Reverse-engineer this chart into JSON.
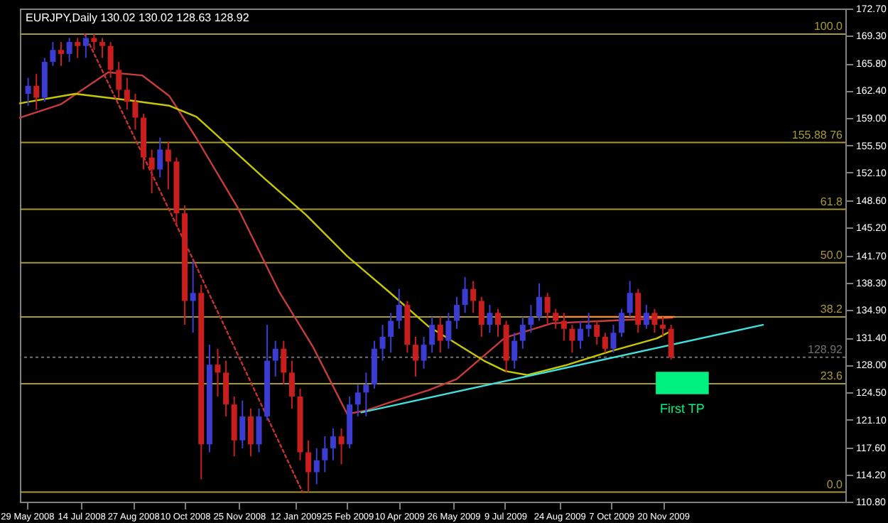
{
  "chart_data": {
    "type": "candlestick",
    "title": "EURJPY,Daily  130.02 130.02 128.63 128.92",
    "x": [
      "2008-05-30",
      "2008-06-06",
      "2008-06-13",
      "2008-06-20",
      "2008-06-27",
      "2008-07-04",
      "2008-07-11",
      "2008-07-18",
      "2008-07-25",
      "2008-08-01",
      "2008-08-08",
      "2008-08-15",
      "2008-08-22",
      "2008-08-29",
      "2008-09-05",
      "2008-09-12",
      "2008-09-19",
      "2008-09-26",
      "2008-10-03",
      "2008-10-10",
      "2008-10-17",
      "2008-10-24",
      "2008-10-31",
      "2008-11-07",
      "2008-11-14",
      "2008-11-21",
      "2008-11-28",
      "2008-12-05",
      "2008-12-12",
      "2008-12-19",
      "2008-12-26",
      "2009-01-02",
      "2009-01-09",
      "2009-01-16",
      "2009-01-23",
      "2009-01-30",
      "2009-02-06",
      "2009-02-13",
      "2009-02-20",
      "2009-02-27",
      "2009-03-06",
      "2009-03-13",
      "2009-03-20",
      "2009-03-27",
      "2009-04-03",
      "2009-04-10",
      "2009-04-17",
      "2009-04-24",
      "2009-05-01",
      "2009-05-08",
      "2009-05-15",
      "2009-05-22",
      "2009-05-29",
      "2009-06-05",
      "2009-06-12",
      "2009-06-19",
      "2009-06-26",
      "2009-07-03",
      "2009-07-10",
      "2009-07-17",
      "2009-07-24",
      "2009-07-31",
      "2009-08-07",
      "2009-08-14",
      "2009-08-21",
      "2009-08-28",
      "2009-09-04",
      "2009-09-11",
      "2009-09-18",
      "2009-09-25",
      "2009-10-02",
      "2009-10-09",
      "2009-10-16",
      "2009-10-23",
      "2009-10-30",
      "2009-11-06",
      "2009-11-13",
      "2009-11-20",
      "2009-11-27"
    ],
    "ohlc": [
      [
        162.0,
        164.0,
        160.5,
        163.0
      ],
      [
        163.0,
        164.5,
        160.0,
        161.5
      ],
      [
        161.5,
        166.5,
        161.0,
        166.0
      ],
      [
        166.0,
        168.5,
        165.5,
        167.5
      ],
      [
        167.5,
        168.5,
        165.5,
        167.0
      ],
      [
        167.0,
        169.0,
        166.0,
        168.5
      ],
      [
        168.5,
        169.0,
        166.5,
        168.0
      ],
      [
        168.0,
        169.3,
        166.5,
        169.0
      ],
      [
        169.0,
        169.5,
        167.5,
        168.5
      ],
      [
        168.5,
        169.0,
        166.5,
        168.0
      ],
      [
        168.0,
        168.5,
        164.0,
        165.0
      ],
      [
        165.0,
        166.0,
        161.5,
        162.5
      ],
      [
        162.5,
        164.0,
        160.0,
        161.0
      ],
      [
        161.0,
        162.0,
        157.5,
        159.0
      ],
      [
        159.0,
        159.5,
        152.5,
        154.0
      ],
      [
        154.0,
        155.0,
        149.5,
        152.5
      ],
      [
        152.5,
        156.5,
        151.5,
        155.0
      ],
      [
        155.0,
        156.0,
        150.0,
        153.5
      ],
      [
        153.5,
        154.0,
        145.5,
        147.0
      ],
      [
        147.0,
        148.0,
        133.0,
        136.0
      ],
      [
        136.0,
        141.0,
        132.0,
        137.0
      ],
      [
        137.0,
        138.0,
        113.6,
        118.0
      ],
      [
        118.0,
        130.5,
        117.0,
        128.0
      ],
      [
        128.0,
        130.0,
        124.0,
        127.0
      ],
      [
        127.0,
        128.5,
        121.5,
        123.0
      ],
      [
        123.0,
        124.0,
        116.5,
        118.5
      ],
      [
        118.5,
        123.5,
        117.5,
        121.5
      ],
      [
        121.5,
        122.5,
        116.5,
        118.0
      ],
      [
        118.0,
        122.5,
        117.0,
        121.5
      ],
      [
        121.5,
        133.0,
        121.0,
        128.5
      ],
      [
        128.5,
        131.0,
        126.5,
        130.0
      ],
      [
        130.0,
        131.0,
        125.5,
        127.0
      ],
      [
        127.0,
        128.5,
        122.5,
        124.0
      ],
      [
        124.0,
        125.0,
        116.0,
        117.0
      ],
      [
        117.0,
        118.5,
        112.0,
        114.5
      ],
      [
        114.5,
        117.5,
        113.0,
        116.0
      ],
      [
        116.0,
        119.0,
        114.5,
        117.5
      ],
      [
        117.5,
        120.0,
        116.0,
        119.0
      ],
      [
        119.0,
        120.0,
        115.5,
        118.0
      ],
      [
        118.0,
        124.0,
        117.5,
        123.0
      ],
      [
        123.0,
        125.5,
        121.5,
        124.5
      ],
      [
        124.5,
        127.0,
        121.5,
        125.5
      ],
      [
        125.5,
        131.0,
        125.0,
        130.0
      ],
      [
        130.0,
        133.0,
        128.5,
        131.5
      ],
      [
        131.5,
        134.5,
        129.5,
        133.5
      ],
      [
        133.5,
        137.5,
        132.5,
        135.5
      ],
      [
        135.5,
        136.0,
        129.5,
        130.5
      ],
      [
        130.5,
        131.5,
        126.5,
        128.5
      ],
      [
        128.5,
        131.5,
        127.5,
        130.5
      ],
      [
        130.5,
        134.0,
        129.5,
        133.0
      ],
      [
        133.0,
        134.0,
        129.5,
        131.0
      ],
      [
        131.0,
        134.5,
        130.0,
        133.5
      ],
      [
        133.5,
        136.5,
        132.5,
        135.5
      ],
      [
        135.5,
        139.0,
        134.5,
        137.5
      ],
      [
        137.5,
        138.5,
        134.5,
        136.0
      ],
      [
        136.0,
        136.5,
        131.5,
        133.0
      ],
      [
        133.0,
        135.5,
        132.0,
        134.5
      ],
      [
        134.5,
        135.0,
        131.5,
        133.0
      ],
      [
        133.0,
        133.5,
        127.0,
        128.5
      ],
      [
        128.5,
        132.0,
        127.5,
        131.0
      ],
      [
        131.0,
        134.0,
        130.0,
        133.0
      ],
      [
        133.0,
        135.5,
        132.0,
        134.0
      ],
      [
        134.0,
        138.2,
        133.5,
        136.5
      ],
      [
        136.5,
        137.0,
        133.0,
        134.5
      ],
      [
        134.5,
        135.0,
        132.5,
        133.5
      ],
      [
        133.5,
        134.5,
        131.0,
        132.5
      ],
      [
        132.5,
        133.0,
        129.5,
        131.0
      ],
      [
        131.0,
        133.5,
        130.0,
        132.5
      ],
      [
        132.5,
        134.5,
        131.5,
        133.0
      ],
      [
        133.0,
        133.5,
        130.5,
        131.5
      ],
      [
        131.5,
        132.0,
        129.5,
        130.0
      ],
      [
        130.0,
        133.0,
        129.5,
        132.0
      ],
      [
        132.0,
        135.0,
        131.5,
        134.5
      ],
      [
        134.5,
        138.5,
        134.0,
        137.0
      ],
      [
        137.0,
        137.5,
        132.0,
        133.0
      ],
      [
        133.0,
        135.5,
        132.5,
        134.5
      ],
      [
        134.5,
        135.0,
        132.0,
        133.0
      ],
      [
        133.0,
        134.0,
        131.5,
        132.5
      ],
      [
        132.5,
        133.0,
        128.63,
        128.92
      ]
    ],
    "colors": [
      "#3c3cd2",
      "#c81e1e",
      "#3c3cd2",
      "#3c3cd2",
      "#c81e1e",
      "#3c3cd2",
      "#c81e1e",
      "#3c3cd2",
      "#c81e1e",
      "#c81e1e",
      "#c81e1e",
      "#c81e1e",
      "#c81e1e",
      "#c81e1e",
      "#c81e1e",
      "#c81e1e",
      "#3c3cd2",
      "#c81e1e",
      "#c81e1e",
      "#c81e1e",
      "#3c3cd2",
      "#c81e1e",
      "#3c3cd2",
      "#c81e1e",
      "#c81e1e",
      "#c81e1e",
      "#3c3cd2",
      "#c81e1e",
      "#3c3cd2",
      "#3c3cd2",
      "#3c3cd2",
      "#c81e1e",
      "#c81e1e",
      "#c81e1e",
      "#c81e1e",
      "#3c3cd2",
      "#3c3cd2",
      "#3c3cd2",
      "#c81e1e",
      "#3c3cd2",
      "#3c3cd2",
      "#3c3cd2",
      "#3c3cd2",
      "#3c3cd2",
      "#3c3cd2",
      "#3c3cd2",
      "#c81e1e",
      "#c81e1e",
      "#3c3cd2",
      "#3c3cd2",
      "#c81e1e",
      "#3c3cd2",
      "#3c3cd2",
      "#3c3cd2",
      "#c81e1e",
      "#c81e1e",
      "#3c3cd2",
      "#c81e1e",
      "#c81e1e",
      "#3c3cd2",
      "#3c3cd2",
      "#3c3cd2",
      "#3c3cd2",
      "#c81e1e",
      "#c81e1e",
      "#c81e1e",
      "#c81e1e",
      "#3c3cd2",
      "#3c3cd2",
      "#c81e1e",
      "#c81e1e",
      "#3c3cd2",
      "#3c3cd2",
      "#3c3cd2",
      "#c81e1e",
      "#3c3cd2",
      "#c81e1e",
      "#c81e1e",
      "#c81e1e"
    ],
    "series": [
      {
        "type": "line",
        "color": "#c83c3c",
        "x": [
          "2008-05-23",
          "2008-06-27",
          "2008-08-06",
          "2008-09-04",
          "2008-09-27",
          "2008-10-20",
          "2008-11-24",
          "2008-12-29",
          "2009-01-27",
          "2009-02-25",
          "2009-03-14",
          "2009-04-01",
          "2009-05-05",
          "2009-05-29",
          "2009-07-09",
          "2009-08-18",
          "2009-10-03",
          "2009-11-28"
        ],
        "values": [
          159.0,
          160.7,
          164.7,
          164.3,
          161.7,
          156.4,
          147.7,
          137.2,
          130.2,
          121.8,
          122.3,
          123.2,
          124.8,
          126.2,
          131.4,
          133.2,
          133.5,
          133.9
        ]
      },
      {
        "type": "line",
        "color": "#c8c800",
        "x": [
          "2008-05-23",
          "2008-07-09",
          "2008-08-23",
          "2008-09-27",
          "2008-10-20",
          "2008-12-18",
          "2009-01-21",
          "2009-02-25",
          "2009-04-01",
          "2009-05-05",
          "2009-06-21",
          "2009-07-09",
          "2009-07-28",
          "2009-08-29",
          "2009-10-07",
          "2009-11-15",
          "2009-11-28"
        ],
        "values": [
          160.8,
          162.0,
          161.2,
          160.5,
          159.1,
          151.2,
          146.8,
          141.6,
          137.2,
          132.8,
          128.5,
          127.2,
          126.7,
          127.9,
          129.7,
          131.3,
          132.3
        ]
      },
      {
        "type": "line",
        "color": "#c83232",
        "line_style": "dotted",
        "x": [
          "2008-07-17",
          "2008-10-18",
          "2009-01-18"
        ],
        "values": [
          169.5,
          140.9,
          112.0
        ]
      },
      {
        "type": "line",
        "color": "#40e0e0",
        "x": [
          "2009-03-09",
          "2010-02-13"
        ],
        "values": [
          122.0,
          133.0
        ]
      },
      {
        "type": "line",
        "color": "#ff8c28",
        "x": [
          "2009-08-14",
          "2009-11-30"
        ],
        "values": [
          134.0,
          134.0
        ]
      },
      {
        "type": "area",
        "color": "#00f080",
        "x": [
          "2009-11-14",
          "2009-12-29"
        ],
        "values": [
          null,
          null
        ],
        "lower": [
          124.3,
          124.3
        ],
        "upper": [
          127.1,
          127.1
        ]
      }
    ],
    "ref_lines": [
      {
        "axis": "y",
        "value": 169.5,
        "color": "#a89838"
      },
      {
        "axis": "y",
        "value": 155.88,
        "color": "#a89838"
      },
      {
        "axis": "y",
        "value": 147.5,
        "color": "#a89838"
      },
      {
        "axis": "y",
        "value": 140.8,
        "color": "#a89838"
      },
      {
        "axis": "y",
        "value": 134.0,
        "color": "#a89838"
      },
      {
        "axis": "y",
        "value": 125.6,
        "color": "#a89838"
      },
      {
        "axis": "y",
        "value": 112.0,
        "color": "#a89838"
      },
      {
        "axis": "y",
        "value": 128.92,
        "label": "128.92",
        "color": "#707070",
        "line_style": "dotted"
      }
    ],
    "annotations": [
      "First TP",
      {
        "text": "100.0",
        "x": "2010-04-24",
        "y": 169.5
      },
      {
        "text": "155.88  76",
        "x": "2010-04-24",
        "y": 155.88
      },
      {
        "text": "61.8",
        "x": "2010-04-24",
        "y": 147.5
      },
      {
        "text": "50.0",
        "x": "2010-04-24",
        "y": 140.8
      },
      {
        "text": "38.2",
        "x": "2010-04-24",
        "y": 134.0
      },
      {
        "text": "23.6",
        "x": "2010-04-24",
        "y": 125.6
      },
      {
        "text": "0.0",
        "x": "2010-04-24",
        "y": 112.0
      }
    ],
    "xlim": [
      "2008-05-23",
      "2010-04-24"
    ],
    "xticks": [
      {
        "value": "2008-05-29",
        "label": "29 May 2008"
      },
      {
        "value": "2008-07-14",
        "label": "14 Jul 2008"
      },
      {
        "value": "2008-08-27",
        "label": "27 Aug 2008"
      },
      {
        "value": "2008-10-10",
        "label": "10 Oct 2008"
      },
      {
        "value": "2008-11-25",
        "label": "25 Nov 2008"
      },
      {
        "value": "2009-01-12",
        "label": "12 Jan 2009"
      },
      {
        "value": "2009-02-25",
        "label": "25 Feb 2009"
      },
      {
        "value": "2009-04-10",
        "label": "10 Apr 2009"
      },
      {
        "value": "2009-05-26",
        "label": "26 May 2009"
      },
      {
        "value": "2009-07-09",
        "label": "9 Jul 2009"
      },
      {
        "value": "2009-08-24",
        "label": "24 Aug 2009"
      },
      {
        "value": "2009-10-07",
        "label": "7 Oct 2009"
      },
      {
        "value": "2009-11-20",
        "label": "20 Nov 2009"
      }
    ],
    "ylim": [
      110.8,
      172.7
    ],
    "yticks": [
      {
        "value": 110.8,
        "label": "110.80"
      },
      {
        "value": 114.2,
        "label": "114.20"
      },
      {
        "value": 117.6,
        "label": "117.60"
      },
      {
        "value": 121.1,
        "label": "121.10"
      },
      {
        "value": 124.5,
        "label": "124.50"
      },
      {
        "value": 128.0,
        "label": "128.00"
      },
      {
        "value": 131.4,
        "label": "131.40"
      },
      {
        "value": 134.9,
        "label": "134.90"
      },
      {
        "value": 138.3,
        "label": "138.30"
      },
      {
        "value": 141.7,
        "label": "141.70"
      },
      {
        "value": 145.2,
        "label": "145.20"
      },
      {
        "value": 148.6,
        "label": "148.60"
      },
      {
        "value": 152.1,
        "label": "152.10"
      },
      {
        "value": 155.5,
        "label": "155.50"
      },
      {
        "value": 159.0,
        "label": "159.00"
      },
      {
        "value": 162.4,
        "label": "162.40"
      },
      {
        "value": 165.8,
        "label": "165.80"
      },
      {
        "value": 169.3,
        "label": "169.30"
      },
      {
        "value": 172.7,
        "label": "172.70"
      }
    ]
  }
}
